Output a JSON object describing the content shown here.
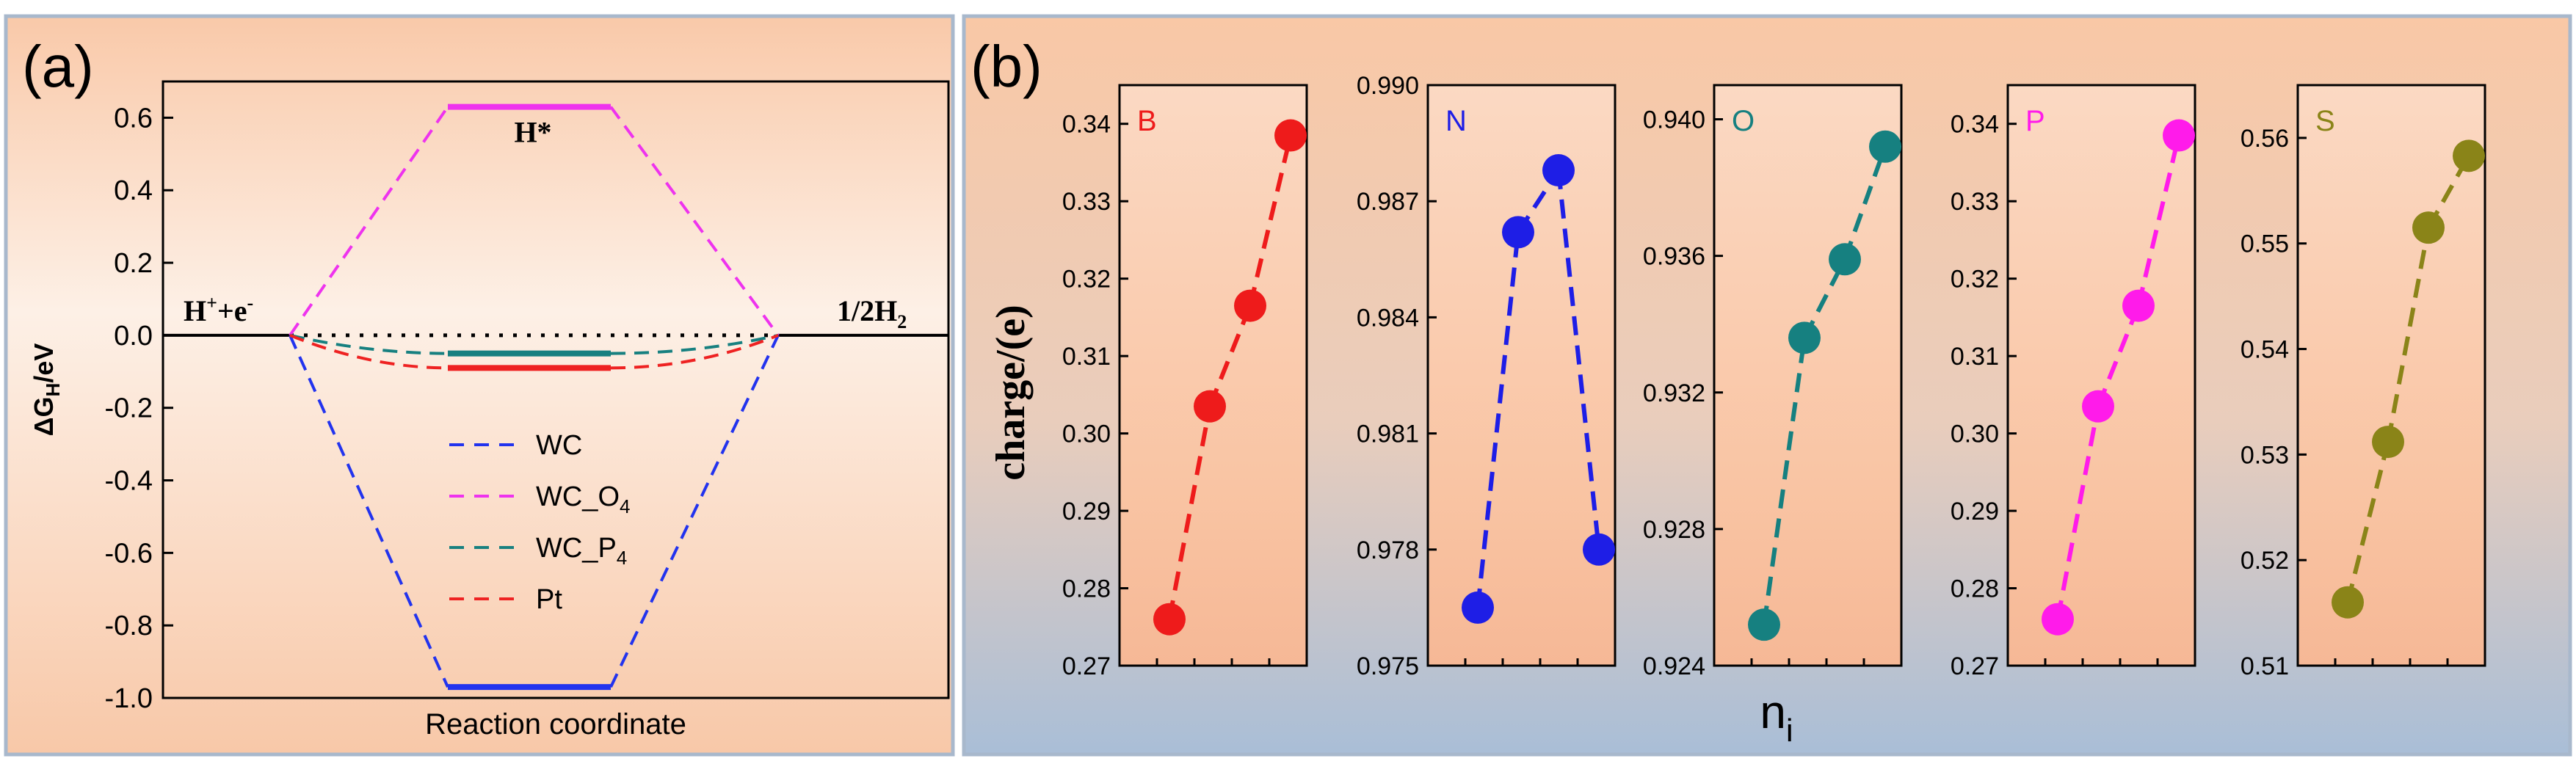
{
  "chart_data": [
    {
      "panel": "(a)",
      "type": "line",
      "xlabel": "Reaction coordinate",
      "ylabel_main": "ΔG",
      "ylabel_sub": "H",
      "ylabel_tail": "/eV",
      "ylim": [
        -1.0,
        0.7
      ],
      "yticks": [
        "0.6",
        "0.4",
        "0.2",
        "0.0",
        "-0.2",
        "-0.4",
        "-0.6",
        "-0.8",
        "-1.0"
      ],
      "ytick_values": [
        0.6,
        0.4,
        0.2,
        0.0,
        -0.2,
        -0.4,
        -0.6,
        -0.8,
        -1.0
      ],
      "annotations": {
        "left_state_main": "H",
        "left_state_sup": "+",
        "left_state_mid": "+e",
        "left_state_sup2": "-",
        "right_state_main": "1/2H",
        "right_state_sub": "2",
        "intermediate": "H*"
      },
      "series": [
        {
          "name": "WC",
          "legend_main": "WC",
          "legend_sub": "",
          "color": "#2233ee",
          "value": -0.97
        },
        {
          "name": "WC_O4",
          "legend_main": "WC_O",
          "legend_sub": "4",
          "color": "#ee33ee",
          "value": 0.63
        },
        {
          "name": "WC_P4",
          "legend_main": "WC_P",
          "legend_sub": "4",
          "color": "#178080",
          "value": -0.05
        },
        {
          "name": "Pt",
          "legend_main": "Pt",
          "legend_sub": "",
          "color": "#ee2222",
          "value": -0.09
        }
      ]
    },
    {
      "panel": "(b)",
      "type": "scatter",
      "xlabel_main": "n",
      "xlabel_sub": "i",
      "ylabel": "charge/(e)",
      "subplots": [
        {
          "label": "B",
          "color": "#ee1b1b",
          "ylim": [
            0.27,
            0.345
          ],
          "yticks": [
            "0.34",
            "0.33",
            "0.32",
            "0.31",
            "0.30",
            "0.29",
            "0.28",
            "0.27"
          ],
          "ytick_values": [
            0.34,
            0.33,
            0.32,
            0.31,
            0.3,
            0.29,
            0.28,
            0.27
          ],
          "values": [
            0.276,
            0.3035,
            0.3165,
            0.3385
          ]
        },
        {
          "label": "N",
          "color": "#1e1ee6",
          "ylim": [
            0.975,
            0.99
          ],
          "yticks": [
            "0.990",
            "0.987",
            "0.984",
            "0.981",
            "0.978",
            "0.975"
          ],
          "ytick_values": [
            0.99,
            0.987,
            0.984,
            0.981,
            0.978,
            0.975
          ],
          "values": [
            0.9765,
            0.9862,
            0.9878,
            0.978
          ]
        },
        {
          "label": "O",
          "color": "#168080",
          "ylim": [
            0.924,
            0.941
          ],
          "yticks": [
            "0.940",
            "0.936",
            "0.932",
            "0.928",
            "0.924"
          ],
          "ytick_values": [
            0.94,
            0.936,
            0.932,
            0.928,
            0.924
          ],
          "values": [
            0.9252,
            0.9336,
            0.9359,
            0.9392
          ]
        },
        {
          "label": "P",
          "color": "#ff1bea",
          "ylim": [
            0.27,
            0.345
          ],
          "yticks": [
            "0.34",
            "0.33",
            "0.32",
            "0.31",
            "0.30",
            "0.29",
            "0.28",
            "0.27"
          ],
          "ytick_values": [
            0.34,
            0.33,
            0.32,
            0.31,
            0.3,
            0.29,
            0.28,
            0.27
          ],
          "values": [
            0.276,
            0.3035,
            0.3165,
            0.3385
          ]
        },
        {
          "label": "S",
          "color": "#8a8418",
          "ylim": [
            0.51,
            0.565
          ],
          "yticks": [
            "0.56",
            "0.55",
            "0.54",
            "0.53",
            "0.52",
            "0.51"
          ],
          "ytick_values": [
            0.56,
            0.55,
            0.54,
            0.53,
            0.52,
            0.51
          ],
          "values": [
            0.516,
            0.5312,
            0.5515,
            0.5583
          ]
        }
      ]
    }
  ]
}
